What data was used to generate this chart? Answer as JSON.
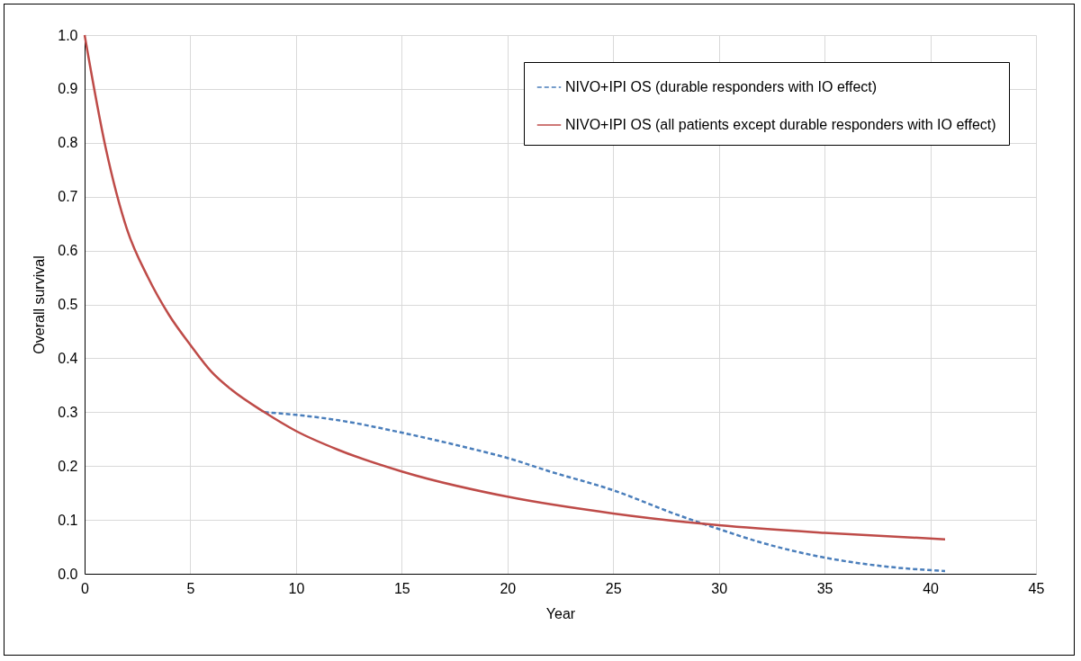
{
  "chart_data": {
    "type": "line",
    "xlabel": "Year",
    "ylabel": "Overall survival",
    "xlim": [
      0,
      45
    ],
    "ylim": [
      0,
      1
    ],
    "xticks": [
      0,
      5,
      10,
      15,
      20,
      25,
      30,
      35,
      40,
      45
    ],
    "yticks": [
      {
        "value": 0,
        "label": "0.0"
      },
      0.1,
      0.2,
      0.3,
      0.4,
      0.5,
      0.6,
      0.7,
      0.8,
      0.9,
      {
        "value": 1,
        "label": "1.0"
      }
    ],
    "grid": true,
    "legend": "top right",
    "marker": "none",
    "series": [
      {
        "name": "NIVO+IPI OS (durable responders with IO effect)",
        "color": "#4a7ebb",
        "line_style": "dashed",
        "x": [
          8.5,
          10,
          12,
          15,
          18,
          20,
          22,
          25,
          28,
          30,
          32,
          35,
          38,
          40.7
        ],
        "values": [
          0.3,
          0.295,
          0.285,
          0.262,
          0.235,
          0.215,
          0.19,
          0.155,
          0.11,
          0.083,
          0.058,
          0.03,
          0.013,
          0.005
        ]
      },
      {
        "name": "NIVO+IPI OS (all patients except durable responders with IO effect)",
        "color": "#be4b48",
        "line_style": "solid",
        "x": [
          0,
          1,
          2,
          3,
          4,
          5,
          6,
          7,
          8.5,
          10,
          12,
          15,
          20,
          25,
          30,
          35,
          40.7
        ],
        "values": [
          1,
          0.79,
          0.64,
          0.55,
          0.48,
          0.425,
          0.375,
          0.34,
          0.3,
          0.265,
          0.23,
          0.19,
          0.143,
          0.112,
          0.09,
          0.076,
          0.064
        ]
      }
    ]
  }
}
